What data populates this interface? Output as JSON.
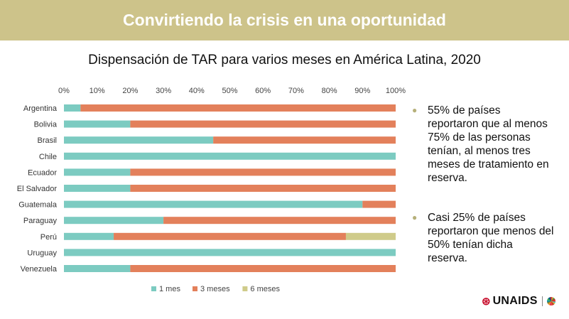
{
  "banner": {
    "title": "Convirtiendo la crisis en una oportunidad"
  },
  "chart_data": {
    "type": "bar",
    "orientation": "horizontal",
    "stacked": true,
    "title": "Dispensación de TAR para varios meses en América Latina, 2020",
    "xlabel": "",
    "ylabel": "",
    "xlim": [
      0,
      100
    ],
    "x_ticks": [
      "0%",
      "10%",
      "20%",
      "30%",
      "40%",
      "50%",
      "60%",
      "70%",
      "80%",
      "90%",
      "100%"
    ],
    "axis_position": "top",
    "grid": false,
    "legend": "bottom",
    "categories": [
      "Argentina",
      "Bolivia",
      "Brasil",
      "Chile",
      "Ecuador",
      "El Salvador",
      "Guatemala",
      "Paraguay",
      "Perú",
      "Uruguay",
      "Venezuela"
    ],
    "series": [
      {
        "name": "1 mes",
        "color": "#7ccbc1",
        "values": [
          5,
          20,
          45,
          100,
          20,
          20,
          90,
          30,
          15,
          100,
          20
        ]
      },
      {
        "name": "3 meses",
        "color": "#e3805b",
        "values": [
          95,
          80,
          55,
          0,
          80,
          80,
          10,
          70,
          70,
          0,
          80
        ]
      },
      {
        "name": "6 meses",
        "color": "#cfcb8a",
        "values": [
          0,
          0,
          0,
          0,
          0,
          0,
          0,
          0,
          15,
          0,
          0
        ]
      }
    ]
  },
  "bullets": [
    {
      "text": "55% de países reportaron que al menos 75% de las personas tenían, al menos tres meses de tratamiento en reserva."
    },
    {
      "text": "Casi 25% de países reportaron que menos del 50% tenían dicha reserva."
    }
  ],
  "logo": {
    "text": "UNAIDS"
  },
  "colors": {
    "banner": "#cdc38a",
    "bullet": "#b6b07a"
  }
}
